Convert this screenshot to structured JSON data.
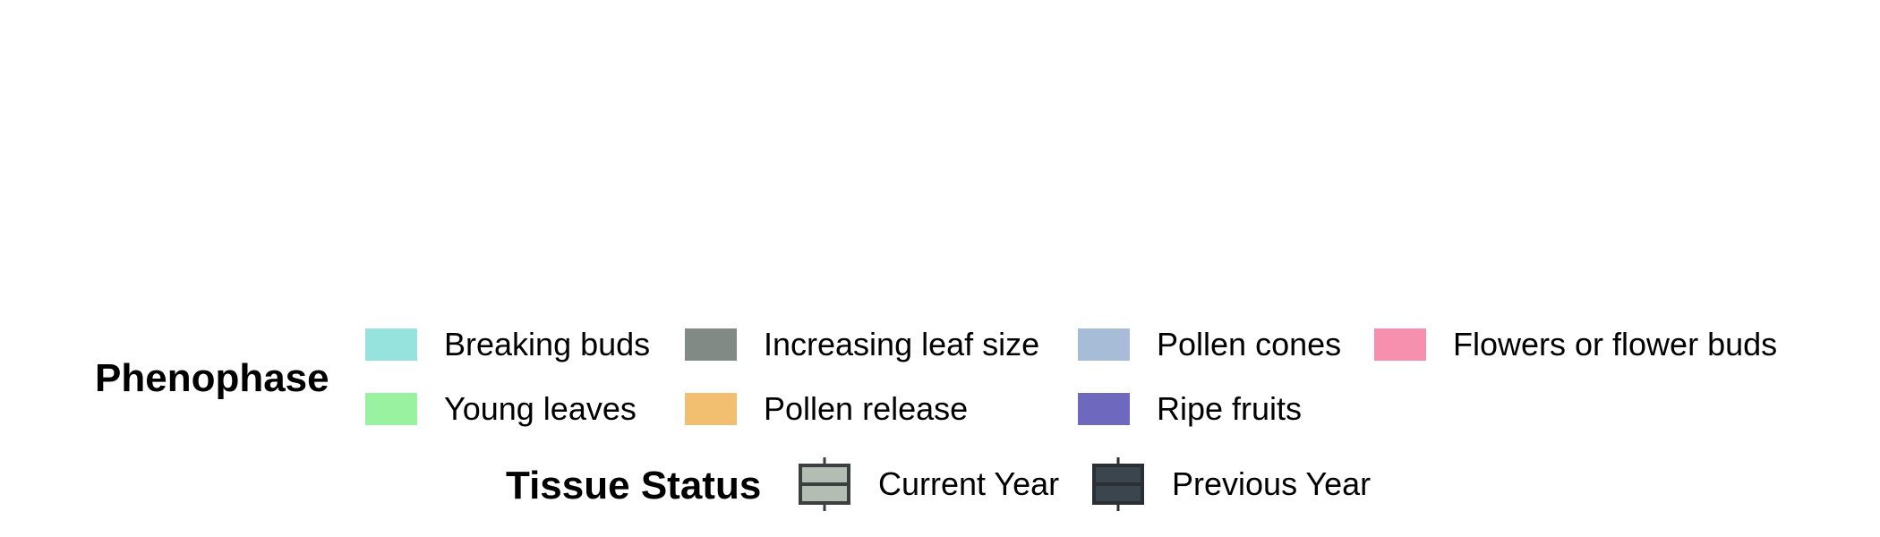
{
  "chart_data": {
    "type": "legend",
    "legends": [
      {
        "title": "Phenophase",
        "entries": [
          {
            "label": "Breaking buds",
            "color": "#96e2dc"
          },
          {
            "label": "Increasing leaf size",
            "color": "#828a86"
          },
          {
            "label": "Pollen cones",
            "color": "#a7bcd7"
          },
          {
            "label": "Flowers or flower buds",
            "color": "#f78faf"
          },
          {
            "label": "Young leaves",
            "color": "#98f2a0"
          },
          {
            "label": "Pollen release",
            "color": "#f2bf71"
          },
          {
            "label": "Ripe fruits",
            "color": "#6e68bf"
          }
        ]
      },
      {
        "title": "Tissue Status",
        "entries": [
          {
            "label": "Current Year",
            "fill": "#b4bdb4",
            "stroke": "#3a3f3f"
          },
          {
            "label": "Previous Year",
            "fill": "#3a454d",
            "stroke": "#2a2f33"
          }
        ]
      }
    ]
  }
}
